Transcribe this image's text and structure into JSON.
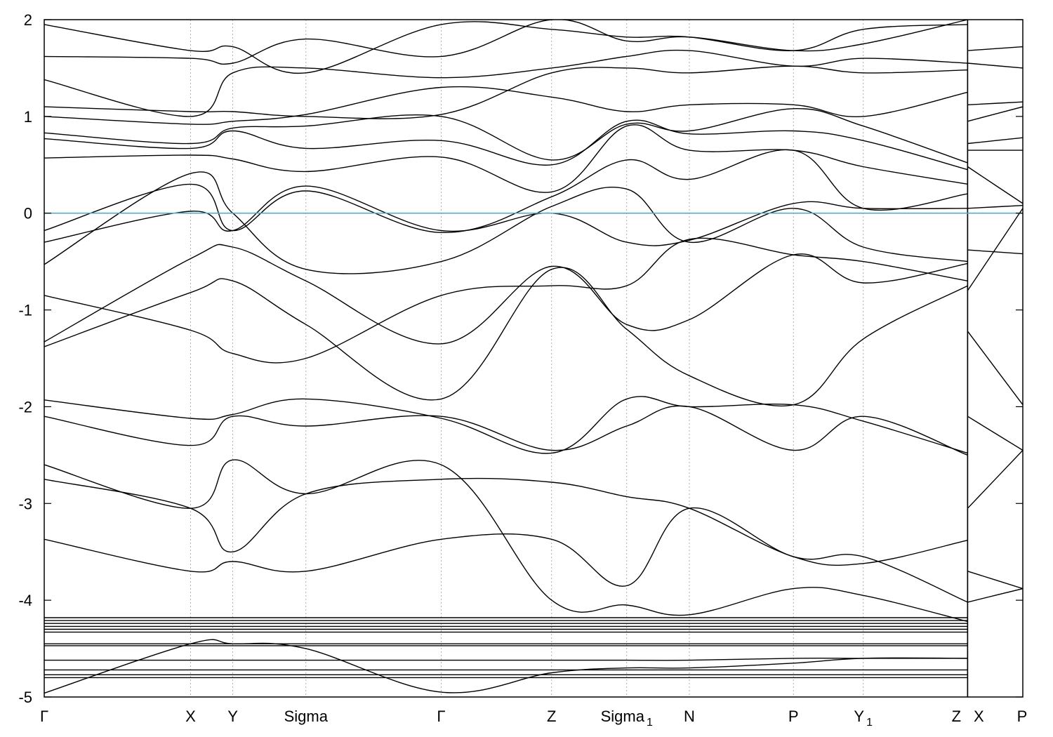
{
  "chart_data": {
    "type": "line",
    "title": "",
    "xlabel": "",
    "ylabel": "",
    "ylim": [
      -5,
      2
    ],
    "yticks": [
      {
        "value": 2,
        "label": "2"
      },
      {
        "value": 1,
        "label": "1"
      },
      {
        "value": 0,
        "label": "0"
      },
      {
        "value": -1,
        "label": "-1"
      },
      {
        "value": -2,
        "label": "-2"
      },
      {
        "value": -3,
        "label": "-3"
      },
      {
        "value": -4,
        "label": "-4"
      },
      {
        "value": -5,
        "label": "-5"
      }
    ],
    "kpoints": [
      {
        "x": 0.0,
        "label": "Γ",
        "sub": ""
      },
      {
        "x": 0.53,
        "label": "X",
        "sub": ""
      },
      {
        "x": 0.683,
        "label": "Y",
        "sub": ""
      },
      {
        "x": 0.948,
        "label": "Sigma",
        "sub": ""
      },
      {
        "x": 1.438,
        "label": "Γ",
        "sub": ""
      },
      {
        "x": 1.838,
        "label": "Z",
        "sub": ""
      },
      {
        "x": 2.11,
        "label": "Sigma",
        "sub": "1"
      },
      {
        "x": 2.337,
        "label": "N",
        "sub": ""
      },
      {
        "x": 2.714,
        "label": "P",
        "sub": ""
      },
      {
        "x": 2.967,
        "label": "Y",
        "sub": "1"
      },
      {
        "x": 3.345,
        "label": "Z",
        "sub": ""
      },
      {
        "x": 3.345,
        "label": "X",
        "sub": ""
      },
      {
        "x": 3.545,
        "label": "P",
        "sub": ""
      }
    ],
    "xlim": [
      0,
      3.545
    ],
    "fermi_level": 0,
    "fermi_color": "#5aa9c4",
    "line_color": "#000000",
    "series": [
      {
        "x": [
          0,
          0.53,
          0.683,
          0.948,
          1.438,
          1.838,
          2.11,
          2.337,
          2.714,
          2.967,
          3.345
        ],
        "y": [
          -4.96,
          -4.45,
          -4.45,
          -4.5,
          -4.95,
          -4.75,
          -4.7,
          -4.7,
          -4.65,
          -4.6,
          -4.6
        ]
      },
      {
        "x": [
          0,
          0.3,
          0.53,
          0.683,
          0.948,
          1.2,
          1.438,
          1.638,
          1.838,
          2.11,
          2.337,
          2.714,
          2.967,
          3.345
        ],
        "y": [
          -4.62,
          -4.62,
          -4.62,
          -4.62,
          -4.62,
          -4.62,
          -4.62,
          -4.62,
          -4.62,
          -4.62,
          -4.62,
          -4.6,
          -4.6,
          -4.6
        ]
      },
      {
        "x": [
          0,
          0.53,
          0.948,
          1.438,
          1.838,
          2.337,
          2.714,
          3.345
        ],
        "y": [
          -4.45,
          -4.45,
          -4.45,
          -4.45,
          -4.45,
          -4.45,
          -4.45,
          -4.45
        ]
      },
      {
        "x": [
          0,
          0.53,
          0.948,
          1.438,
          1.838,
          2.337,
          2.714,
          3.345
        ],
        "y": [
          -4.47,
          -4.47,
          -4.47,
          -4.47,
          -4.47,
          -4.47,
          -4.47,
          -4.47
        ]
      },
      {
        "x": [
          0,
          0.53,
          0.948,
          1.438,
          1.838,
          2.337,
          2.714,
          3.345
        ],
        "y": [
          -4.72,
          -4.72,
          -4.72,
          -4.72,
          -4.72,
          -4.72,
          -4.72,
          -4.72
        ]
      },
      {
        "x": [
          0,
          0.53,
          0.948,
          1.438,
          1.838,
          2.337,
          2.714,
          3.345
        ],
        "y": [
          -4.77,
          -4.77,
          -4.77,
          -4.77,
          -4.77,
          -4.77,
          -4.77,
          -4.77
        ]
      },
      {
        "x": [
          0,
          0.53,
          0.948,
          1.438,
          1.838,
          2.337,
          2.714,
          3.345
        ],
        "y": [
          -4.8,
          -4.8,
          -4.8,
          -4.8,
          -4.8,
          -4.8,
          -4.8,
          -4.8
        ]
      },
      {
        "x": [
          0,
          0.53,
          0.948,
          1.438,
          1.838,
          2.337,
          2.714,
          3.345
        ],
        "y": [
          -4.18,
          -4.18,
          -4.18,
          -4.18,
          -4.18,
          -4.18,
          -4.18,
          -4.18
        ]
      },
      {
        "x": [
          0,
          0.53,
          0.948,
          1.438,
          1.838,
          2.337,
          2.714,
          3.345
        ],
        "y": [
          -4.21,
          -4.21,
          -4.21,
          -4.21,
          -4.21,
          -4.21,
          -4.21,
          -4.21
        ]
      },
      {
        "x": [
          0,
          0.53,
          0.948,
          1.438,
          1.838,
          2.337,
          2.714,
          3.345
        ],
        "y": [
          -4.24,
          -4.24,
          -4.24,
          -4.24,
          -4.24,
          -4.24,
          -4.24,
          -4.24
        ]
      },
      {
        "x": [
          0,
          0.53,
          0.948,
          1.438,
          1.838,
          2.337,
          2.714,
          3.345
        ],
        "y": [
          -4.27,
          -4.27,
          -4.27,
          -4.27,
          -4.27,
          -4.27,
          -4.27,
          -4.27
        ]
      },
      {
        "x": [
          0,
          0.53,
          0.948,
          1.438,
          1.838,
          2.337,
          2.714,
          3.345
        ],
        "y": [
          -4.3,
          -4.3,
          -4.3,
          -4.3,
          -4.3,
          -4.3,
          -4.3,
          -4.3
        ]
      },
      {
        "x": [
          0,
          0.53,
          0.948,
          1.438,
          1.838,
          2.337,
          2.714,
          3.345
        ],
        "y": [
          -4.33,
          -4.33,
          -4.33,
          -4.33,
          -4.33,
          -4.33,
          -4.33,
          -4.33
        ]
      },
      {
        "x": [
          0,
          0.53,
          0.683,
          0.948,
          1.438,
          1.838,
          2.11,
          2.337,
          2.714,
          2.967,
          3.345
        ],
        "y": [
          -3.37,
          -3.7,
          -3.6,
          -3.7,
          -3.37,
          -3.37,
          -3.85,
          -3.05,
          -3.55,
          -3.55,
          -4.02
        ]
      },
      {
        "x": [
          0,
          0.53,
          0.683,
          0.948,
          1.438,
          1.838,
          2.11,
          2.337,
          2.714,
          2.967,
          3.345
        ],
        "y": [
          -2.75,
          -3.05,
          -3.5,
          -2.9,
          -2.75,
          -2.78,
          -2.93,
          -3.05,
          -3.55,
          -3.62,
          -3.38
        ]
      },
      {
        "x": [
          0,
          0.53,
          0.683,
          0.948,
          1.438,
          1.838,
          2.11,
          2.337,
          2.714,
          2.967,
          3.345
        ],
        "y": [
          -2.6,
          -3.05,
          -2.55,
          -2.9,
          -2.6,
          -4.0,
          -4.05,
          -4.15,
          -3.88,
          -3.95,
          -4.22
        ]
      },
      {
        "x": [
          0,
          0.53,
          0.683,
          0.948,
          1.438,
          1.838,
          2.11,
          2.337,
          2.714,
          2.967,
          3.345
        ],
        "y": [
          -2.1,
          -2.4,
          -2.1,
          -2.2,
          -2.1,
          -2.45,
          -2.2,
          -2.0,
          -2.45,
          -2.1,
          -2.5
        ]
      },
      {
        "x": [
          0,
          0.53,
          0.683,
          0.948,
          1.438,
          1.838,
          2.11,
          2.337,
          2.714,
          2.967,
          3.345
        ],
        "y": [
          -1.93,
          -2.12,
          -2.08,
          -1.92,
          -2.12,
          -2.48,
          -1.92,
          -2.0,
          -1.98,
          -2.15,
          -2.48
        ]
      },
      {
        "x": [
          0,
          0.53,
          0.683,
          0.948,
          1.438,
          1.838,
          2.11,
          2.337,
          2.714,
          2.967,
          3.345
        ],
        "y": [
          -1.38,
          -0.82,
          -0.7,
          -1.15,
          -1.92,
          -0.58,
          -1.2,
          -1.68,
          -1.98,
          -1.3,
          -0.75
        ]
      },
      {
        "x": [
          0,
          0.53,
          0.683,
          0.948,
          1.438,
          1.838,
          2.11,
          2.337,
          2.714,
          2.967,
          3.345
        ],
        "y": [
          -1.33,
          -0.47,
          -0.35,
          -0.7,
          -1.35,
          -0.55,
          -1.15,
          -1.1,
          -0.43,
          -0.72,
          -0.52
        ]
      },
      {
        "x": [
          0,
          0.53,
          0.683,
          0.948,
          1.438,
          1.838,
          2.11,
          2.337,
          2.714,
          2.967,
          3.345
        ],
        "y": [
          -0.85,
          -1.21,
          -1.45,
          -1.5,
          -0.85,
          -0.75,
          -0.75,
          -0.27,
          -0.43,
          -0.5,
          -0.7
        ]
      },
      {
        "x": [
          0,
          0.53,
          0.683,
          0.948,
          1.438,
          1.838,
          2.11,
          2.337,
          2.714,
          2.967,
          3.345
        ],
        "y": [
          -0.53,
          0.41,
          0.0,
          -0.58,
          -0.5,
          0.07,
          0.25,
          -0.3,
          0.05,
          -0.35,
          -0.5
        ]
      },
      {
        "x": [
          0,
          0.53,
          0.683,
          0.948,
          1.438,
          1.838,
          2.11,
          2.337,
          2.714,
          2.967,
          3.345
        ],
        "y": [
          -0.3,
          0.02,
          -0.18,
          0.28,
          -0.18,
          0.0,
          -0.3,
          -0.28,
          0.1,
          0.05,
          0.05
        ]
      },
      {
        "x": [
          0,
          0.53,
          0.683,
          0.948,
          1.438,
          1.838,
          2.11,
          2.337,
          2.714,
          2.967,
          3.345
        ],
        "y": [
          -0.18,
          0.3,
          -0.18,
          0.23,
          -0.2,
          0.17,
          0.55,
          0.35,
          0.65,
          0.05,
          0.2
        ]
      },
      {
        "x": [
          0,
          0.53,
          0.683,
          0.948,
          1.438,
          1.838,
          2.11,
          2.337,
          2.714,
          2.967,
          3.345
        ],
        "y": [
          0.57,
          0.6,
          0.56,
          0.43,
          0.58,
          0.22,
          0.9,
          0.65,
          0.65,
          0.48,
          0.3
        ]
      },
      {
        "x": [
          0,
          0.53,
          0.683,
          0.948,
          1.438,
          1.838,
          2.11,
          2.337,
          2.714,
          2.967,
          3.345
        ],
        "y": [
          0.77,
          0.67,
          0.85,
          0.67,
          0.75,
          0.5,
          0.95,
          0.82,
          0.85,
          0.75,
          0.45
        ]
      },
      {
        "x": [
          0,
          0.53,
          0.683,
          0.948,
          1.438,
          1.838,
          2.11,
          2.337,
          2.714,
          2.967,
          3.345
        ],
        "y": [
          0.83,
          0.72,
          0.88,
          0.9,
          1.0,
          0.55,
          0.92,
          0.85,
          1.08,
          0.9,
          0.52
        ]
      },
      {
        "x": [
          0,
          0.53,
          0.683,
          0.948,
          1.438,
          1.838,
          2.11,
          2.337,
          2.714,
          2.967,
          3.345
        ],
        "y": [
          1.0,
          0.92,
          0.95,
          1.02,
          1.3,
          1.2,
          1.05,
          1.12,
          1.12,
          1.0,
          1.25
        ]
      },
      {
        "x": [
          0,
          0.53,
          0.683,
          0.948,
          1.438,
          1.838,
          2.11,
          2.337,
          2.714,
          2.967,
          3.345
        ],
        "y": [
          1.1,
          1.05,
          1.05,
          1.0,
          1.02,
          1.45,
          1.5,
          1.45,
          1.52,
          1.45,
          1.48
        ]
      },
      {
        "x": [
          0,
          0.53,
          0.683,
          0.948,
          1.438,
          1.838,
          2.11,
          2.337,
          2.714,
          2.967,
          3.345
        ],
        "y": [
          1.38,
          1.0,
          1.45,
          1.5,
          1.4,
          1.5,
          1.62,
          1.68,
          1.52,
          1.6,
          1.55
        ]
      },
      {
        "x": [
          0,
          0.53,
          0.683,
          0.948,
          1.438,
          1.838,
          2.11,
          2.337,
          2.714,
          2.967,
          3.345
        ],
        "y": [
          1.62,
          1.6,
          1.55,
          1.8,
          1.62,
          2.0,
          1.78,
          1.82,
          1.68,
          1.75,
          2.0
        ]
      },
      {
        "x": [
          0,
          0.53,
          0.683,
          0.948,
          1.438,
          1.838,
          2.11,
          2.337,
          2.714,
          2.967,
          3.345
        ],
        "y": [
          1.95,
          1.68,
          1.72,
          1.45,
          1.95,
          1.9,
          1.82,
          1.82,
          1.68,
          1.9,
          1.95
        ]
      },
      {
        "x": [
          3.345,
          3.545
        ],
        "y": [
          -1.22,
          -1.98
        ]
      },
      {
        "x": [
          3.345,
          3.545
        ],
        "y": [
          -2.1,
          -2.45
        ]
      },
      {
        "x": [
          3.345,
          3.545
        ],
        "y": [
          -3.05,
          -2.45
        ]
      },
      {
        "x": [
          3.345,
          3.545
        ],
        "y": [
          -3.7,
          -3.88
        ]
      },
      {
        "x": [
          3.345,
          3.545
        ],
        "y": [
          -4.02,
          -3.88
        ]
      },
      {
        "x": [
          3.345,
          3.545
        ],
        "y": [
          -0.8,
          0.05
        ]
      },
      {
        "x": [
          3.345,
          3.545
        ],
        "y": [
          -0.38,
          -0.42
        ]
      },
      {
        "x": [
          3.345,
          3.545
        ],
        "y": [
          0.05,
          0.08
        ]
      },
      {
        "x": [
          3.345,
          3.545
        ],
        "y": [
          0.48,
          0.1
        ]
      },
      {
        "x": [
          3.345,
          3.545
        ],
        "y": [
          0.65,
          0.65
        ]
      },
      {
        "x": [
          3.345,
          3.545
        ],
        "y": [
          0.72,
          0.78
        ]
      },
      {
        "x": [
          3.345,
          3.545
        ],
        "y": [
          0.95,
          1.1
        ]
      },
      {
        "x": [
          3.345,
          3.545
        ],
        "y": [
          1.12,
          1.15
        ]
      },
      {
        "x": [
          3.345,
          3.545
        ],
        "y": [
          1.55,
          1.5
        ]
      },
      {
        "x": [
          3.345,
          3.545
        ],
        "y": [
          1.68,
          1.72
        ]
      }
    ]
  }
}
